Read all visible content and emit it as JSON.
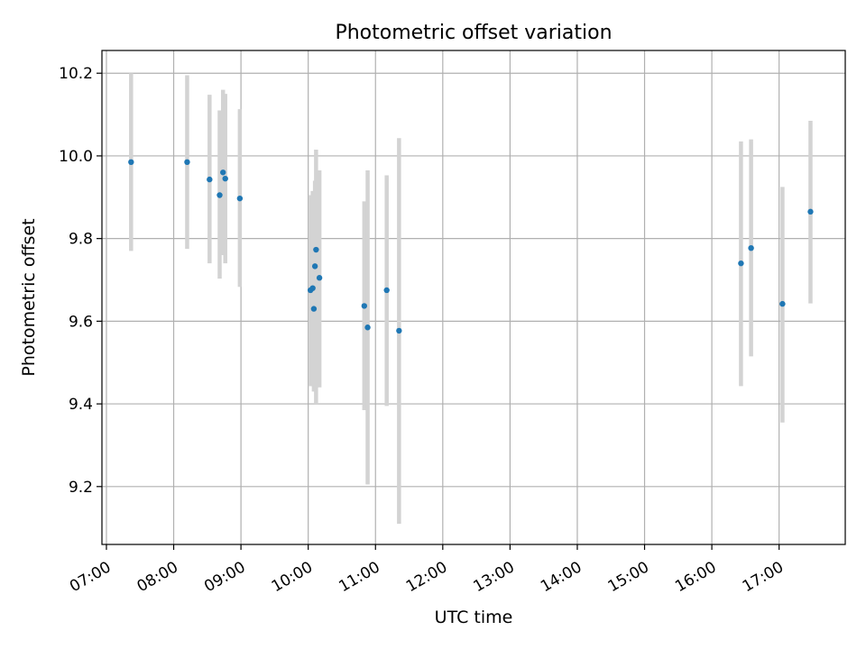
{
  "chart_data": {
    "type": "scatter",
    "title": "Photometric offset variation",
    "xlabel": "UTC time",
    "ylabel": "Photometric offset",
    "xlim": [
      "06:56",
      "17:59"
    ],
    "ylim": [
      9.06,
      10.255
    ],
    "grid": true,
    "x_ticks": [
      "07:00",
      "08:00",
      "09:00",
      "10:00",
      "11:00",
      "12:00",
      "13:00",
      "14:00",
      "15:00",
      "16:00",
      "17:00"
    ],
    "y_ticks": [
      "9.2",
      "9.4",
      "9.6",
      "9.8",
      "10.0",
      "10.2"
    ],
    "colors": {
      "points": "#1f77b4",
      "errorbars": "#d3d3d3",
      "grid": "#b0b0b0"
    },
    "series": [
      {
        "points": [
          {
            "x": "07:22",
            "y": 9.985,
            "yerr_low": 9.77,
            "yerr_high": 10.2
          },
          {
            "x": "08:12",
            "y": 9.985,
            "yerr_low": 9.775,
            "yerr_high": 10.195
          },
          {
            "x": "08:32",
            "y": 9.943,
            "yerr_low": 9.74,
            "yerr_high": 10.148
          },
          {
            "x": "08:41",
            "y": 9.905,
            "yerr_low": 9.703,
            "yerr_high": 10.11
          },
          {
            "x": "08:44",
            "y": 9.96,
            "yerr_low": 9.76,
            "yerr_high": 10.16
          },
          {
            "x": "08:46",
            "y": 9.945,
            "yerr_low": 9.74,
            "yerr_high": 10.15
          },
          {
            "x": "08:59",
            "y": 9.897,
            "yerr_low": 9.683,
            "yerr_high": 10.113
          },
          {
            "x": "10:02",
            "y": 9.675,
            "yerr_low": 9.443,
            "yerr_high": 9.905
          },
          {
            "x": "10:04",
            "y": 9.68,
            "yerr_low": 9.443,
            "yerr_high": 9.915
          },
          {
            "x": "10:05",
            "y": 9.63,
            "yerr_low": 9.43,
            "yerr_high": 9.84
          },
          {
            "x": "10:06",
            "y": 9.733,
            "yerr_low": 9.52,
            "yerr_high": 9.94
          },
          {
            "x": "10:07",
            "y": 9.773,
            "yerr_low": 9.4,
            "yerr_high": 10.015
          },
          {
            "x": "10:10",
            "y": 9.705,
            "yerr_low": 9.44,
            "yerr_high": 9.965
          },
          {
            "x": "10:50",
            "y": 9.637,
            "yerr_low": 9.385,
            "yerr_high": 9.89
          },
          {
            "x": "10:53",
            "y": 9.585,
            "yerr_low": 9.205,
            "yerr_high": 9.965
          },
          {
            "x": "11:10",
            "y": 9.675,
            "yerr_low": 9.395,
            "yerr_high": 9.953
          },
          {
            "x": "11:21",
            "y": 9.577,
            "yerr_low": 9.11,
            "yerr_high": 10.043
          },
          {
            "x": "16:26",
            "y": 9.74,
            "yerr_low": 9.443,
            "yerr_high": 10.035
          },
          {
            "x": "16:35",
            "y": 9.777,
            "yerr_low": 9.515,
            "yerr_high": 10.04
          },
          {
            "x": "17:03",
            "y": 9.642,
            "yerr_low": 9.355,
            "yerr_high": 9.925
          },
          {
            "x": "17:28",
            "y": 9.865,
            "yerr_low": 9.643,
            "yerr_high": 10.085
          }
        ]
      }
    ]
  }
}
